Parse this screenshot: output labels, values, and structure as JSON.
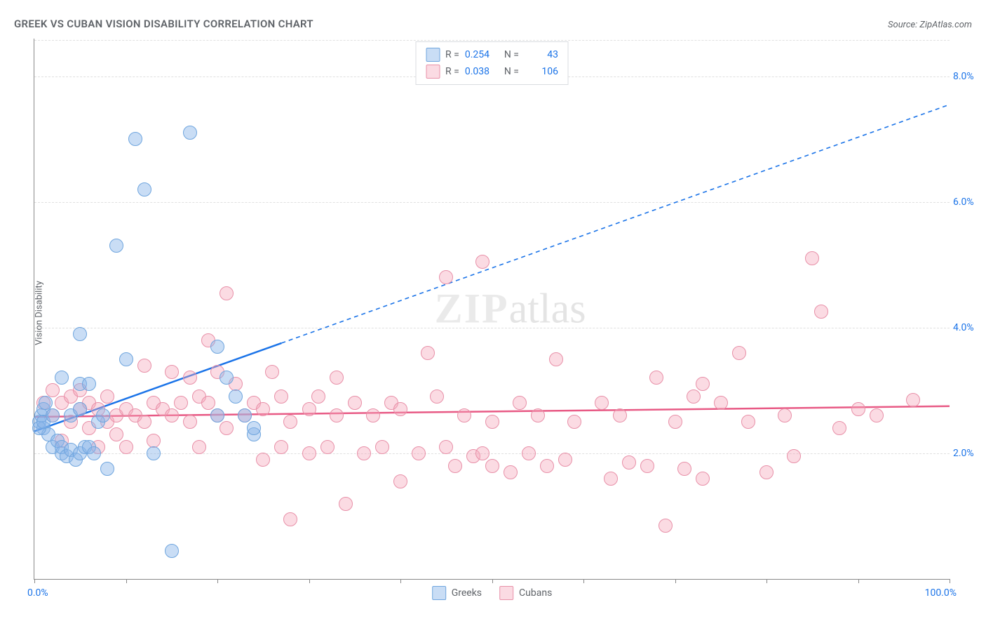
{
  "title": "GREEK VS CUBAN VISION DISABILITY CORRELATION CHART",
  "source": "Source: ZipAtlas.com",
  "y_axis_label": "Vision Disability",
  "watermark": {
    "zip": "ZIP",
    "atlas": "atlas"
  },
  "chart": {
    "type": "scatter",
    "xlim": [
      0,
      100
    ],
    "ylim": [
      0,
      8.6
    ],
    "y_ticks": [
      2.0,
      4.0,
      6.0,
      8.0
    ],
    "y_tick_labels": [
      "2.0%",
      "4.0%",
      "6.0%",
      "8.0%"
    ],
    "x_ticks": [
      0,
      10,
      20,
      30,
      40,
      50,
      60,
      70,
      80,
      90,
      100
    ],
    "x_origin_label": "0.0%",
    "x_max_label": "100.0%",
    "background_color": "#ffffff",
    "grid_color": "#e0e0e0",
    "axis_color": "#888888"
  },
  "series": {
    "greeks": {
      "label": "Greeks",
      "fill_color": "rgba(135, 180, 232, 0.45)",
      "stroke_color": "#6fa5de",
      "line_color": "#1a73e8",
      "R_label": "R =",
      "R_value": "0.254",
      "N_label": "N =",
      "N_value": "43",
      "points": [
        [
          0.5,
          2.5
        ],
        [
          0.8,
          2.6
        ],
        [
          1,
          2.4
        ],
        [
          1,
          2.7
        ],
        [
          1.2,
          2.8
        ],
        [
          1.5,
          2.3
        ],
        [
          0.5,
          2.4
        ],
        [
          1,
          2.5
        ],
        [
          2,
          2.6
        ],
        [
          2,
          2.1
        ],
        [
          2.5,
          2.2
        ],
        [
          3,
          2.0
        ],
        [
          3,
          2.1
        ],
        [
          3.5,
          1.95
        ],
        [
          4,
          2.05
        ],
        [
          4.5,
          1.9
        ],
        [
          5,
          2.0
        ],
        [
          5.5,
          2.1
        ],
        [
          4,
          2.6
        ],
        [
          5,
          2.7
        ],
        [
          6,
          2.1
        ],
        [
          6.5,
          2.0
        ],
        [
          7,
          2.5
        ],
        [
          7.5,
          2.6
        ],
        [
          8,
          1.75
        ],
        [
          3,
          3.2
        ],
        [
          5,
          3.1
        ],
        [
          5,
          3.9
        ],
        [
          6,
          3.1
        ],
        [
          9,
          5.3
        ],
        [
          11,
          7.0
        ],
        [
          12,
          6.2
        ],
        [
          13,
          2.0
        ],
        [
          17,
          7.1
        ],
        [
          20,
          2.6
        ],
        [
          20,
          3.7
        ],
        [
          21,
          3.2
        ],
        [
          22,
          2.9
        ],
        [
          23,
          2.6
        ],
        [
          24,
          2.3
        ],
        [
          24,
          2.4
        ],
        [
          15,
          0.45
        ],
        [
          10,
          3.5
        ]
      ],
      "trend": {
        "x1": 0,
        "y1": 2.35,
        "x2": 100,
        "y2": 7.55,
        "solid_until_x": 27
      }
    },
    "cubans": {
      "label": "Cubans",
      "fill_color": "rgba(244, 164, 184, 0.40)",
      "stroke_color": "#e890a8",
      "line_color": "#e85a85",
      "R_label": "R =",
      "R_value": "0.038",
      "N_label": "N =",
      "N_value": "106",
      "points": [
        [
          1,
          2.8
        ],
        [
          2,
          3.0
        ],
        [
          2,
          2.6
        ],
        [
          3,
          2.8
        ],
        [
          3,
          2.2
        ],
        [
          4,
          2.9
        ],
        [
          4,
          2.5
        ],
        [
          5,
          2.7
        ],
        [
          5,
          3.0
        ],
        [
          6,
          2.4
        ],
        [
          6,
          2.8
        ],
        [
          7,
          2.7
        ],
        [
          7,
          2.1
        ],
        [
          8,
          2.5
        ],
        [
          8,
          2.9
        ],
        [
          9,
          2.6
        ],
        [
          9,
          2.3
        ],
        [
          10,
          2.7
        ],
        [
          10,
          2.1
        ],
        [
          11,
          2.6
        ],
        [
          12,
          3.4
        ],
        [
          12,
          2.5
        ],
        [
          13,
          2.2
        ],
        [
          13,
          2.8
        ],
        [
          14,
          2.7
        ],
        [
          15,
          2.6
        ],
        [
          15,
          3.3
        ],
        [
          16,
          2.8
        ],
        [
          17,
          2.5
        ],
        [
          17,
          3.2
        ],
        [
          18,
          2.1
        ],
        [
          18,
          2.9
        ],
        [
          19,
          2.8
        ],
        [
          19,
          3.8
        ],
        [
          20,
          3.3
        ],
        [
          20,
          2.6
        ],
        [
          21,
          4.55
        ],
        [
          21,
          2.4
        ],
        [
          22,
          3.1
        ],
        [
          23,
          2.6
        ],
        [
          24,
          2.8
        ],
        [
          25,
          1.9
        ],
        [
          25,
          2.7
        ],
        [
          26,
          3.3
        ],
        [
          27,
          2.1
        ],
        [
          27,
          2.9
        ],
        [
          28,
          2.5
        ],
        [
          28,
          0.95
        ],
        [
          30,
          2.0
        ],
        [
          30,
          2.7
        ],
        [
          31,
          2.9
        ],
        [
          32,
          2.1
        ],
        [
          33,
          2.6
        ],
        [
          33,
          3.2
        ],
        [
          34,
          1.2
        ],
        [
          35,
          2.8
        ],
        [
          36,
          2.0
        ],
        [
          37,
          2.6
        ],
        [
          38,
          2.1
        ],
        [
          39,
          2.8
        ],
        [
          40,
          1.55
        ],
        [
          40,
          2.7
        ],
        [
          42,
          2.0
        ],
        [
          43,
          3.6
        ],
        [
          44,
          2.9
        ],
        [
          45,
          2.1
        ],
        [
          45,
          4.8
        ],
        [
          46,
          1.8
        ],
        [
          47,
          2.6
        ],
        [
          48,
          1.95
        ],
        [
          49,
          2.0
        ],
        [
          49,
          5.05
        ],
        [
          50,
          1.8
        ],
        [
          50,
          2.5
        ],
        [
          52,
          1.7
        ],
        [
          53,
          2.8
        ],
        [
          54,
          2.0
        ],
        [
          55,
          2.6
        ],
        [
          56,
          1.8
        ],
        [
          57,
          3.5
        ],
        [
          58,
          1.9
        ],
        [
          59,
          2.5
        ],
        [
          62,
          2.8
        ],
        [
          63,
          1.6
        ],
        [
          64,
          2.6
        ],
        [
          65,
          1.85
        ],
        [
          67,
          1.8
        ],
        [
          68,
          3.2
        ],
        [
          69,
          0.85
        ],
        [
          70,
          2.5
        ],
        [
          71,
          1.75
        ],
        [
          72,
          2.9
        ],
        [
          73,
          3.1
        ],
        [
          73,
          1.6
        ],
        [
          75,
          2.8
        ],
        [
          77,
          3.6
        ],
        [
          78,
          2.5
        ],
        [
          80,
          1.7
        ],
        [
          82,
          2.6
        ],
        [
          83,
          1.95
        ],
        [
          85,
          5.1
        ],
        [
          86,
          4.25
        ],
        [
          88,
          2.4
        ],
        [
          90,
          2.7
        ],
        [
          92,
          2.6
        ],
        [
          96,
          2.85
        ]
      ],
      "trend": {
        "x1": 0,
        "y1": 2.58,
        "x2": 100,
        "y2": 2.75,
        "solid_until_x": 100
      }
    }
  }
}
